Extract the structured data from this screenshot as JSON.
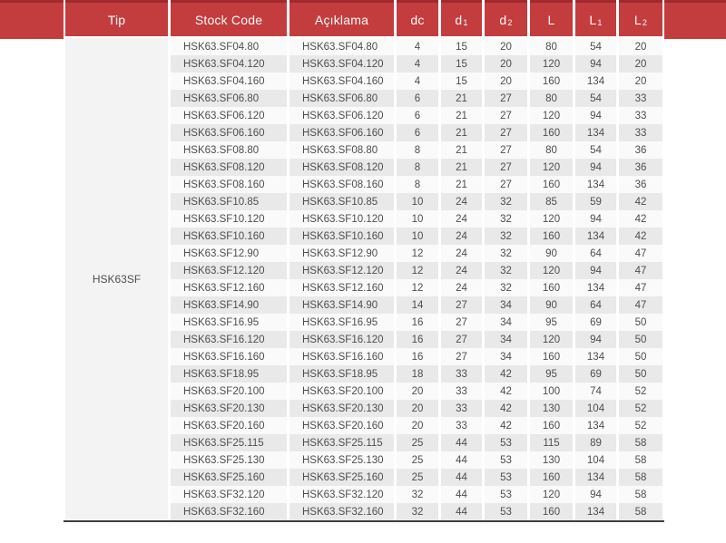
{
  "colors": {
    "header_red": "#c33d3f",
    "header_top_line": "#a02a2c",
    "header_text": "#fafafa",
    "row_light": "#fafafa",
    "row_dark": "#e9e9e9",
    "tip_bg": "#f3f3f3",
    "body_text": "#4e4e50",
    "bottom_line": "#3f3f41"
  },
  "table": {
    "tip_value": "HSK63SF",
    "headers": [
      {
        "label": "Tip",
        "sub": ""
      },
      {
        "label": "Stock Code",
        "sub": ""
      },
      {
        "label": "Açıklama",
        "sub": ""
      },
      {
        "label": "dc",
        "sub": ""
      },
      {
        "label": "d",
        "sub": "1"
      },
      {
        "label": "d",
        "sub": "2"
      },
      {
        "label": "L",
        "sub": ""
      },
      {
        "label": "L",
        "sub": "1"
      },
      {
        "label": "L",
        "sub": "2"
      }
    ],
    "rows": [
      {
        "stock_code": "HSK63.SF04.80",
        "aciklama": "HSK63.SF04.80",
        "dc": "4",
        "d1": "15",
        "d2": "20",
        "L": "80",
        "L1": "54",
        "L2": "20"
      },
      {
        "stock_code": "HSK63.SF04.120",
        "aciklama": "HSK63.SF04.120",
        "dc": "4",
        "d1": "15",
        "d2": "20",
        "L": "120",
        "L1": "94",
        "L2": "20"
      },
      {
        "stock_code": "HSK63.SF04.160",
        "aciklama": "HSK63.SF04.160",
        "dc": "4",
        "d1": "15",
        "d2": "20",
        "L": "160",
        "L1": "134",
        "L2": "20"
      },
      {
        "stock_code": "HSK63.SF06.80",
        "aciklama": "HSK63.SF06.80",
        "dc": "6",
        "d1": "21",
        "d2": "27",
        "L": "80",
        "L1": "54",
        "L2": "33"
      },
      {
        "stock_code": "HSK63.SF06.120",
        "aciklama": "HSK63.SF06.120",
        "dc": "6",
        "d1": "21",
        "d2": "27",
        "L": "120",
        "L1": "94",
        "L2": "33"
      },
      {
        "stock_code": "HSK63.SF06.160",
        "aciklama": "HSK63.SF06.160",
        "dc": "6",
        "d1": "21",
        "d2": "27",
        "L": "160",
        "L1": "134",
        "L2": "33"
      },
      {
        "stock_code": "HSK63.SF08.80",
        "aciklama": "HSK63.SF08.80",
        "dc": "8",
        "d1": "21",
        "d2": "27",
        "L": "80",
        "L1": "54",
        "L2": "36"
      },
      {
        "stock_code": "HSK63.SF08.120",
        "aciklama": "HSK63.SF08.120",
        "dc": "8",
        "d1": "21",
        "d2": "27",
        "L": "120",
        "L1": "94",
        "L2": "36"
      },
      {
        "stock_code": "HSK63.SF08.160",
        "aciklama": "HSK63.SF08.160",
        "dc": "8",
        "d1": "21",
        "d2": "27",
        "L": "160",
        "L1": "134",
        "L2": "36"
      },
      {
        "stock_code": "HSK63.SF10.85",
        "aciklama": "HSK63.SF10.85",
        "dc": "10",
        "d1": "24",
        "d2": "32",
        "L": "85",
        "L1": "59",
        "L2": "42"
      },
      {
        "stock_code": "HSK63.SF10.120",
        "aciklama": "HSK63.SF10.120",
        "dc": "10",
        "d1": "24",
        "d2": "32",
        "L": "120",
        "L1": "94",
        "L2": "42"
      },
      {
        "stock_code": "HSK63.SF10.160",
        "aciklama": "HSK63.SF10.160",
        "dc": "10",
        "d1": "24",
        "d2": "32",
        "L": "160",
        "L1": "134",
        "L2": "42"
      },
      {
        "stock_code": "HSK63.SF12.90",
        "aciklama": "HSK63.SF12.90",
        "dc": "12",
        "d1": "24",
        "d2": "32",
        "L": "90",
        "L1": "64",
        "L2": "47"
      },
      {
        "stock_code": "HSK63.SF12.120",
        "aciklama": "HSK63.SF12.120",
        "dc": "12",
        "d1": "24",
        "d2": "32",
        "L": "120",
        "L1": "94",
        "L2": "47"
      },
      {
        "stock_code": "HSK63.SF12.160",
        "aciklama": "HSK63.SF12.160",
        "dc": "12",
        "d1": "24",
        "d2": "32",
        "L": "160",
        "L1": "134",
        "L2": "47"
      },
      {
        "stock_code": "HSK63.SF14.90",
        "aciklama": "HSK63.SF14.90",
        "dc": "14",
        "d1": "27",
        "d2": "34",
        "L": "90",
        "L1": "64",
        "L2": "47"
      },
      {
        "stock_code": "HSK63.SF16.95",
        "aciklama": "HSK63.SF16.95",
        "dc": "16",
        "d1": "27",
        "d2": "34",
        "L": "95",
        "L1": "69",
        "L2": "50"
      },
      {
        "stock_code": "HSK63.SF16.120",
        "aciklama": "HSK63.SF16.120",
        "dc": "16",
        "d1": "27",
        "d2": "34",
        "L": "120",
        "L1": "94",
        "L2": "50"
      },
      {
        "stock_code": "HSK63.SF16.160",
        "aciklama": "HSK63.SF16.160",
        "dc": "16",
        "d1": "27",
        "d2": "34",
        "L": "160",
        "L1": "134",
        "L2": "50"
      },
      {
        "stock_code": "HSK63.SF18.95",
        "aciklama": "HSK63.SF18.95",
        "dc": "18",
        "d1": "33",
        "d2": "42",
        "L": "95",
        "L1": "69",
        "L2": "50"
      },
      {
        "stock_code": "HSK63.SF20.100",
        "aciklama": "HSK63.SF20.100",
        "dc": "20",
        "d1": "33",
        "d2": "42",
        "L": "100",
        "L1": "74",
        "L2": "52"
      },
      {
        "stock_code": "HSK63.SF20.130",
        "aciklama": "HSK63.SF20.130",
        "dc": "20",
        "d1": "33",
        "d2": "42",
        "L": "130",
        "L1": "104",
        "L2": "52"
      },
      {
        "stock_code": "HSK63.SF20.160",
        "aciklama": "HSK63.SF20.160",
        "dc": "20",
        "d1": "33",
        "d2": "42",
        "L": "160",
        "L1": "134",
        "L2": "52"
      },
      {
        "stock_code": "HSK63.SF25.115",
        "aciklama": "HSK63.SF25.115",
        "dc": "25",
        "d1": "44",
        "d2": "53",
        "L": "115",
        "L1": "89",
        "L2": "58"
      },
      {
        "stock_code": "HSK63.SF25.130",
        "aciklama": "HSK63.SF25.130",
        "dc": "25",
        "d1": "44",
        "d2": "53",
        "L": "130",
        "L1": "104",
        "L2": "58"
      },
      {
        "stock_code": "HSK63.SF25.160",
        "aciklama": "HSK63.SF25.160",
        "dc": "25",
        "d1": "44",
        "d2": "53",
        "L": "160",
        "L1": "134",
        "L2": "58"
      },
      {
        "stock_code": "HSK63.SF32.120",
        "aciklama": "HSK63.SF32.120",
        "dc": "32",
        "d1": "44",
        "d2": "53",
        "L": "120",
        "L1": "94",
        "L2": "58"
      },
      {
        "stock_code": "HSK63.SF32.160",
        "aciklama": "HSK63.SF32.160",
        "dc": "32",
        "d1": "44",
        "d2": "53",
        "L": "160",
        "L1": "134",
        "L2": "58"
      }
    ]
  }
}
